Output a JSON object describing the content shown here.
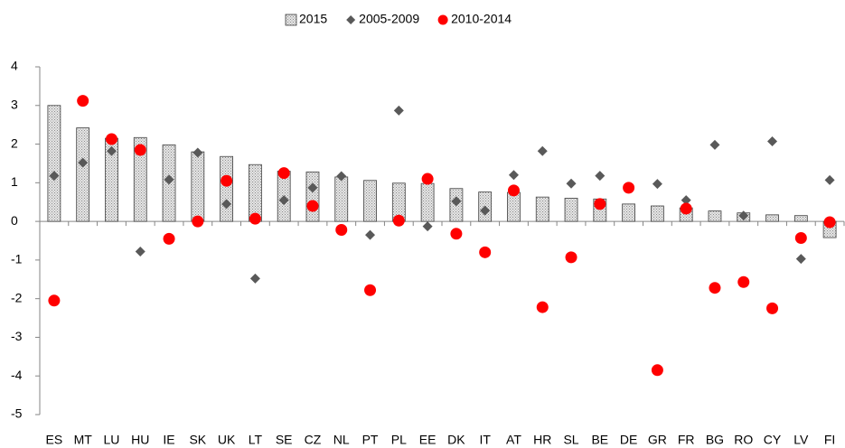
{
  "chart_data": {
    "type": "bar",
    "categories": [
      "ES",
      "MT",
      "LU",
      "HU",
      "IE",
      "SK",
      "UK",
      "LT",
      "SE",
      "CZ",
      "NL",
      "PT",
      "PL",
      "EE",
      "DK",
      "IT",
      "AT",
      "HR",
      "SL",
      "BE",
      "DE",
      "GR",
      "FR",
      "BG",
      "RO",
      "CY",
      "LV",
      "FI"
    ],
    "series": [
      {
        "name": "2015",
        "type": "bar",
        "color": "#bfbfbf",
        "values": [
          3.0,
          2.42,
          2.15,
          2.17,
          1.98,
          1.8,
          1.68,
          1.47,
          1.3,
          1.28,
          1.15,
          1.06,
          0.99,
          0.98,
          0.85,
          0.76,
          0.75,
          0.63,
          0.6,
          0.58,
          0.45,
          0.4,
          0.35,
          0.27,
          0.22,
          0.17,
          0.15,
          -0.42
        ]
      },
      {
        "name": "2005-2009",
        "type": "scatter",
        "marker": "diamond",
        "color": "#595959",
        "values": [
          1.18,
          1.52,
          1.82,
          -0.78,
          1.08,
          1.78,
          0.45,
          -1.48,
          0.55,
          0.87,
          1.17,
          -0.35,
          2.87,
          -0.13,
          0.52,
          0.28,
          1.2,
          1.82,
          0.98,
          1.18,
          0.85,
          0.97,
          0.55,
          1.98,
          0.15,
          2.07,
          -0.97,
          1.07
        ]
      },
      {
        "name": "2010-2014",
        "type": "scatter",
        "marker": "circle",
        "color": "#ff0000",
        "values": [
          -2.05,
          3.12,
          2.13,
          1.85,
          -0.45,
          0.0,
          1.05,
          0.07,
          1.25,
          0.4,
          -0.22,
          -1.78,
          0.02,
          1.1,
          -0.32,
          -0.8,
          0.8,
          -2.22,
          -0.93,
          0.45,
          0.87,
          -3.85,
          0.33,
          -1.72,
          -1.57,
          -2.25,
          -0.43,
          -0.02
        ]
      }
    ],
    "ylim": [
      -5,
      4
    ],
    "yticks": [
      -5,
      -4,
      -3,
      -2,
      -1,
      0,
      1,
      2,
      3,
      4
    ],
    "legend": "top"
  }
}
